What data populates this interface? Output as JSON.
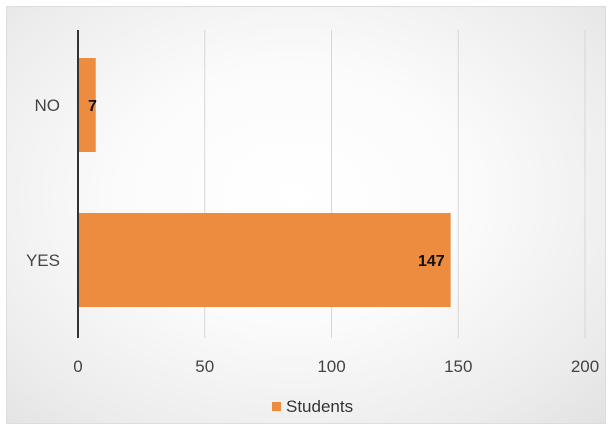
{
  "chart_data": {
    "type": "bar",
    "orientation": "horizontal",
    "categories": [
      "NO",
      "YES"
    ],
    "series": [
      {
        "name": "Students",
        "values": [
          7,
          147
        ],
        "color": "#ED8B3F"
      }
    ],
    "data_labels": [
      "7",
      "147"
    ],
    "xlim": [
      0,
      200
    ],
    "x_ticks": [
      0,
      50,
      100,
      150,
      200
    ],
    "x_tick_labels": [
      "0",
      "50",
      "100",
      "150",
      "200"
    ],
    "title": "",
    "xlabel": "",
    "ylabel": "",
    "grid": true,
    "legend_position": "bottom"
  },
  "legend": {
    "label": "Students"
  }
}
